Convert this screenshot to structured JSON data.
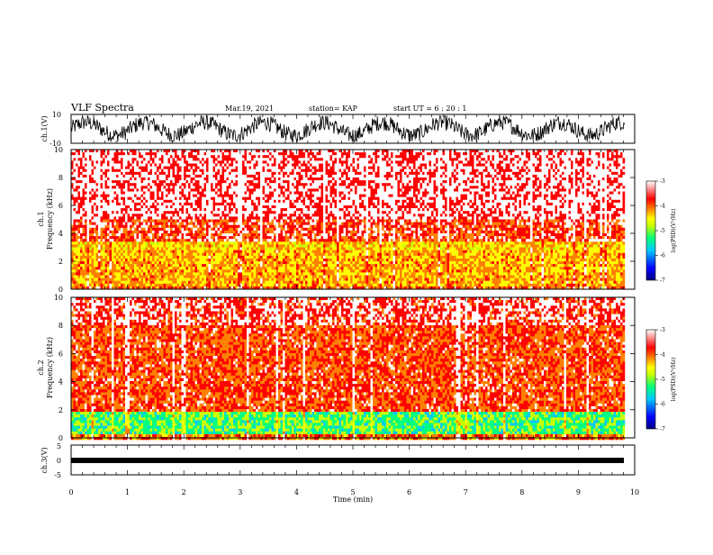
{
  "header": {
    "title": "VLF Spectra",
    "date": "Mar.19, 2021",
    "station": "station= KAP",
    "start": "start  UT =  6 : 20 : 1"
  },
  "chart_data": [
    {
      "type": "line",
      "id": "ch1_waveform",
      "ylabel": "ch.1(V)",
      "ylim": [
        -10,
        10
      ],
      "yticks": [
        "10",
        "-10"
      ],
      "xlim": [
        0,
        10
      ],
      "data_end_min": 9.82,
      "description_of_series": "noisy waveform with slow oscillation between about -8 and 8 V"
    },
    {
      "type": "heatmap",
      "id": "ch1_spectrogram",
      "ylabel": "ch.1\nFrequency  (kHz)",
      "ylabel_lines": [
        "ch.1",
        "Frequency  (kHz)"
      ],
      "ylim": [
        0,
        10
      ],
      "yticks": [
        "0",
        "2",
        "4",
        "6",
        "8",
        "10"
      ],
      "xlim": [
        0,
        10
      ],
      "data_end_min": 9.82,
      "colorbar": {
        "label": "log(PSD)(V²/Hz)",
        "range": [
          -7,
          -3
        ],
        "ticks": [
          "-3",
          "-4",
          "-5",
          "-6",
          "-7"
        ]
      }
    },
    {
      "type": "heatmap",
      "id": "ch2_spectrogram",
      "ylabel_lines": [
        "ch.2",
        "Frequency  (kHz)"
      ],
      "ylim": [
        0,
        10
      ],
      "yticks": [
        "0",
        "2",
        "4",
        "6",
        "8",
        "10"
      ],
      "xlim": [
        0,
        10
      ],
      "data_end_min": 9.82,
      "colorbar": {
        "label": "log(PSD)(V²/Hz)",
        "range": [
          -7,
          -3
        ],
        "ticks": [
          "-3",
          "-4",
          "-5",
          "-6",
          "-7"
        ]
      }
    },
    {
      "type": "line",
      "id": "ch3_waveform",
      "ylabel": "ch.3(V)",
      "ylim": [
        -5,
        5
      ],
      "yticks": [
        "5",
        "0",
        "-5"
      ],
      "xlim": [
        0,
        10
      ],
      "data_end_min": 9.82,
      "xlabel": "Time  (min)",
      "xticks": [
        "0",
        "1",
        "2",
        "3",
        "4",
        "5",
        "6",
        "7",
        "8",
        "9",
        "10"
      ]
    }
  ],
  "colors": {
    "scale": [
      "#000080",
      "#0000ff",
      "#00c8ff",
      "#00ff80",
      "#c8ff00",
      "#ffff00",
      "#ff8000",
      "#ff0000",
      "#ffffff"
    ]
  }
}
